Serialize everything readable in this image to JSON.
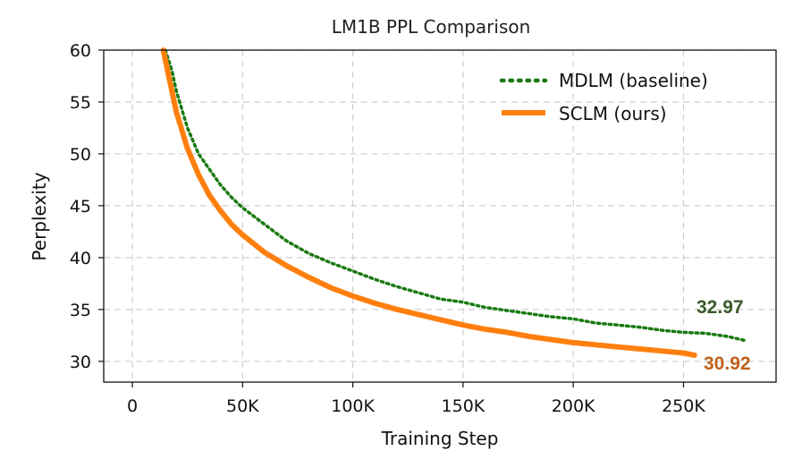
{
  "chart_data": {
    "type": "line",
    "title": "LM1B PPL Comparison",
    "xlabel": "Training Step",
    "ylabel": "Perplexity",
    "xlim": [
      -13000,
      292000
    ],
    "ylim": [
      28,
      60
    ],
    "x_ticks": [
      0,
      50000,
      100000,
      150000,
      200000,
      250000
    ],
    "x_tick_labels": [
      "0",
      "50K",
      "100K",
      "150K",
      "200K",
      "250K"
    ],
    "y_ticks": [
      30,
      35,
      40,
      45,
      50,
      55,
      60
    ],
    "y_tick_labels": [
      "30",
      "35",
      "40",
      "45",
      "50",
      "55",
      "60"
    ],
    "grid": true,
    "legend_position": "top-right",
    "series": [
      {
        "name": "MDLM (baseline)",
        "color": "#1a7a12",
        "style": "dotted",
        "x": [
          15000,
          18000,
          20000,
          25000,
          30000,
          35000,
          40000,
          45000,
          50000,
          60000,
          70000,
          80000,
          90000,
          100000,
          110000,
          120000,
          130000,
          140000,
          150000,
          160000,
          170000,
          180000,
          190000,
          200000,
          210000,
          220000,
          230000,
          240000,
          250000,
          260000,
          270000,
          278000
        ],
        "y": [
          60.0,
          58.0,
          56.0,
          52.5,
          50.0,
          48.5,
          47.0,
          45.8,
          44.8,
          43.2,
          41.6,
          40.4,
          39.5,
          38.7,
          37.9,
          37.2,
          36.6,
          36.0,
          35.7,
          35.2,
          34.9,
          34.6,
          34.3,
          34.1,
          33.7,
          33.5,
          33.3,
          33.0,
          32.8,
          32.7,
          32.4,
          32.0
        ]
      },
      {
        "name": "SCLM (ours)",
        "color": "#ff7f0e",
        "style": "solid",
        "x": [
          14000,
          16000,
          18000,
          20000,
          25000,
          30000,
          35000,
          40000,
          45000,
          50000,
          60000,
          70000,
          80000,
          90000,
          100000,
          110000,
          120000,
          130000,
          140000,
          150000,
          160000,
          170000,
          180000,
          190000,
          200000,
          210000,
          220000,
          230000,
          240000,
          250000,
          255000
        ],
        "y": [
          60.0,
          58.0,
          56.0,
          54.0,
          50.5,
          48.0,
          46.0,
          44.5,
          43.2,
          42.2,
          40.5,
          39.2,
          38.1,
          37.1,
          36.3,
          35.6,
          35.0,
          34.5,
          34.0,
          33.5,
          33.1,
          32.8,
          32.4,
          32.1,
          31.8,
          31.6,
          31.4,
          31.2,
          31.0,
          30.8,
          30.6
        ]
      }
    ],
    "annotations": [
      {
        "text": "32.97",
        "color": "#3a5a2a"
      },
      {
        "text": "30.92",
        "color": "#c0601a"
      }
    ]
  }
}
